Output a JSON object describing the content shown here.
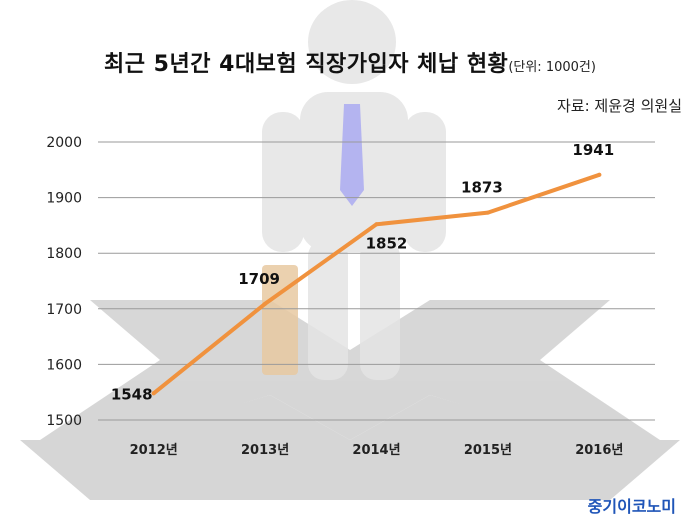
{
  "title": {
    "main": "최근 5년간 4대보험 직장가입자 체납 현황",
    "unit": "(단위: 1000건)"
  },
  "source": "자료: 제윤경 의원실",
  "brand": "중기이코노미",
  "chart_data": {
    "type": "line",
    "title": "최근 5년간 4대보험 직장가입자 체납 현황",
    "unit": "(단위: 1000건)",
    "categories": [
      "2012년",
      "2013년",
      "2014년",
      "2015년",
      "2016년"
    ],
    "series": [
      {
        "values": [
          1548,
          1709,
          1852,
          1873,
          1941
        ]
      }
    ],
    "ylim": [
      1500,
      2000
    ],
    "yticks": [
      1500,
      1600,
      1700,
      1800,
      1900,
      2000
    ],
    "grid": true,
    "legend": "none",
    "line_color": "#f0923e"
  }
}
